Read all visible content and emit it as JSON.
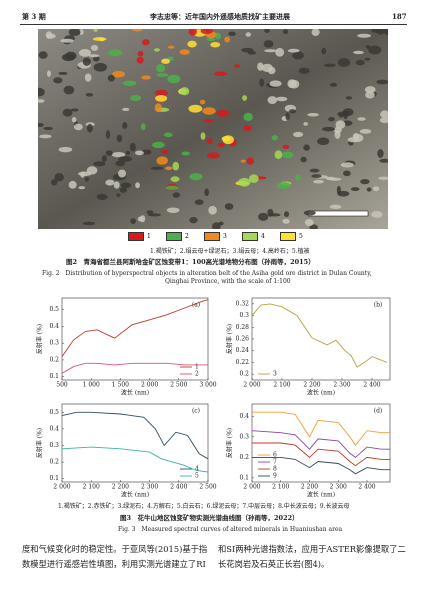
{
  "header": {
    "issue": "第 3 期",
    "running_title": "李志忠等：近年国内外遥感地质找矿主要进展",
    "page": "187"
  },
  "figure2": {
    "legend": [
      {
        "label": "1",
        "color": "#d7191c"
      },
      {
        "label": "2",
        "color": "#4daf4a"
      },
      {
        "label": "3",
        "color": "#f08a1c"
      },
      {
        "label": "4",
        "color": "#a6d854"
      },
      {
        "label": "5",
        "color": "#ffe135"
      }
    ],
    "legend_text": "1.褐铁矿；2.绢云母+绿泥石；3.绢云母；4.高岭石；5.植被",
    "caption_cn": "图2　青海省都兰县阿斯哈金矿区蚀变带1：100高光谱地物分布图（孙雨等，2015）",
    "caption_en_1": "Fig. 2　Distribution of hyperspectral objects in alteration belt of the Asiha gold ore district in Dulan County,",
    "caption_en_2": "Qinghai Province, with the scale of 1:100"
  },
  "figure3": {
    "panels": [
      {
        "label": "(a)",
        "xlabel": "波长 (nm)",
        "ylabel": "反射率 (%)",
        "xlim": [
          500,
          3000
        ],
        "xticks": [
          500,
          {
            "value": 1000,
            "label": "1 000"
          },
          {
            "value": 1500,
            "label": "1 500"
          },
          {
            "value": 2000,
            "label": "2 000"
          },
          {
            "value": 2500,
            "label": "2 500"
          },
          {
            "value": 3000,
            "label": "3 000"
          }
        ],
        "ylim": [
          0.08,
          0.57
        ],
        "yticks": [
          0.1,
          0.2,
          0.3,
          0.4,
          0.5
        ],
        "legend": "lower right",
        "series": [
          {
            "name": "1",
            "color": "#c0392b",
            "x": [
              500,
              700,
              900,
              1100,
              1400,
              1700,
              2000,
              2300,
              2600,
              2900,
              3000
            ],
            "values": [
              0.22,
              0.32,
              0.37,
              0.38,
              0.33,
              0.41,
              0.44,
              0.47,
              0.51,
              0.55,
              0.56
            ]
          },
          {
            "name": "2",
            "color": "#e0507a",
            "x": [
              500,
              700,
              900,
              1100,
              1400,
              1700,
              2000,
              2300,
              2600,
              2900,
              3000
            ],
            "values": [
              0.12,
              0.16,
              0.18,
              0.18,
              0.17,
              0.18,
              0.18,
              0.18,
              0.17,
              0.17,
              0.17
            ]
          }
        ]
      },
      {
        "label": "(b)",
        "xlabel": "波长 (nm)",
        "ylabel": "反射率 (%)",
        "xlim": [
          2000,
          2460
        ],
        "xticks": [
          {
            "value": 2000,
            "label": "2 000"
          },
          {
            "value": 2100,
            "label": "2 100"
          },
          {
            "value": 2200,
            "label": "2 200"
          },
          {
            "value": 2300,
            "label": "2 300"
          },
          {
            "value": 2400,
            "label": "2 400"
          }
        ],
        "ylim": [
          0.19,
          0.33
        ],
        "yticks": [
          0.2,
          0.22,
          0.24,
          0.26,
          0.28,
          0.3,
          0.32
        ],
        "legend": "lower left",
        "series": [
          {
            "name": "3",
            "color": "#b5a33a",
            "x": [
              2000,
              2030,
              2060,
              2100,
              2150,
              2200,
              2250,
              2280,
              2310,
              2330,
              2350,
              2380,
              2400,
              2450
            ],
            "values": [
              0.3,
              0.318,
              0.32,
              0.315,
              0.3,
              0.262,
              0.25,
              0.258,
              0.24,
              0.232,
              0.212,
              0.222,
              0.23,
              0.22
            ]
          }
        ]
      },
      {
        "label": "(c)",
        "xlabel": "波长 (nm)",
        "ylabel": "反射率 (%)",
        "xlim": [
          2000,
          2500
        ],
        "xticks": [
          {
            "value": 2000,
            "label": "2 000"
          },
          {
            "value": 2100,
            "label": "2 100"
          },
          {
            "value": 2200,
            "label": "2 200"
          },
          {
            "value": 2300,
            "label": "2 300"
          },
          {
            "value": 2400,
            "label": "2 400"
          },
          {
            "value": 2500,
            "label": "2 500"
          }
        ],
        "ylim": [
          0.08,
          0.55
        ],
        "yticks": [
          0.1,
          0.2,
          0.3,
          0.4,
          0.5
        ],
        "legend": "lower right",
        "series": [
          {
            "name": "4",
            "color": "#2f4f5f",
            "x": [
              2000,
              2050,
              2100,
              2200,
              2280,
              2320,
              2350,
              2390,
              2430,
              2470,
              2500
            ],
            "values": [
              0.48,
              0.5,
              0.5,
              0.49,
              0.47,
              0.4,
              0.3,
              0.38,
              0.36,
              0.25,
              0.22
            ]
          },
          {
            "name": "5",
            "color": "#3bb3a6",
            "x": [
              2000,
              2100,
              2200,
              2300,
              2340,
              2380,
              2420,
              2460,
              2500
            ],
            "values": [
              0.28,
              0.29,
              0.28,
              0.26,
              0.22,
              0.2,
              0.18,
              0.15,
              0.14
            ]
          }
        ]
      },
      {
        "label": "(d)",
        "xlabel": "波长 (nm)",
        "ylabel": "反射率 (%)",
        "xlim": [
          2000,
          2480
        ],
        "xticks": [
          {
            "value": 2000,
            "label": "2 000"
          },
          {
            "value": 2100,
            "label": "2 100"
          },
          {
            "value": 2200,
            "label": "2 200"
          },
          {
            "value": 2300,
            "label": "2 300"
          },
          {
            "value": 2400,
            "label": "2 400"
          }
        ],
        "ylim": [
          0.08,
          0.46
        ],
        "yticks": [
          0.1,
          0.2,
          0.3,
          0.4
        ],
        "legend": "lower left",
        "series": [
          {
            "name": "6",
            "color": "#f0a030",
            "x": [
              2000,
              2100,
              2150,
              2200,
              2230,
              2300,
              2340,
              2360,
              2400,
              2450,
              2480
            ],
            "values": [
              0.42,
              0.42,
              0.41,
              0.3,
              0.38,
              0.37,
              0.3,
              0.26,
              0.33,
              0.32,
              0.32
            ]
          },
          {
            "name": "7",
            "color": "#8e44ad",
            "x": [
              2000,
              2100,
              2150,
              2200,
              2230,
              2300,
              2340,
              2360,
              2400,
              2450,
              2480
            ],
            "values": [
              0.33,
              0.32,
              0.31,
              0.24,
              0.29,
              0.28,
              0.22,
              0.2,
              0.25,
              0.24,
              0.24
            ]
          },
          {
            "name": "8",
            "color": "#c0392b",
            "x": [
              2000,
              2100,
              2150,
              2200,
              2230,
              2300,
              2340,
              2360,
              2400,
              2450,
              2480
            ],
            "values": [
              0.27,
              0.27,
              0.26,
              0.2,
              0.24,
              0.23,
              0.18,
              0.16,
              0.2,
              0.19,
              0.19
            ]
          },
          {
            "name": "9",
            "color": "#34495e",
            "x": [
              2000,
              2100,
              2150,
              2200,
              2230,
              2300,
              2340,
              2360,
              2400,
              2450,
              2480
            ],
            "values": [
              0.2,
              0.2,
              0.19,
              0.15,
              0.18,
              0.17,
              0.14,
              0.12,
              0.15,
              0.14,
              0.14
            ]
          }
        ]
      }
    ],
    "legend_text": "1.褐铁矿；2.赤铁矿；3.绿泥石；4.方解石；5.白云石；6.绿泥云母；7.中层云母；8.中长波云母；9.长波云母",
    "caption_cn": "图3　花牛山地区蚀变矿物实测光谱曲线图（孙雨等，2022）",
    "caption_en": "Fig. 3　Measured spectral curves of altered minerals in Huaniushan area"
  },
  "body": {
    "left": "度和气候变化时的稳定性。于亚凤等(2015)基于指数模型进行遥感岩性填图，利用实测光谱建立了RI",
    "right": "和SI两种光谱指数法，应用于ASTER影像提取了二长花岗岩及石英正长岩(图4)。"
  }
}
